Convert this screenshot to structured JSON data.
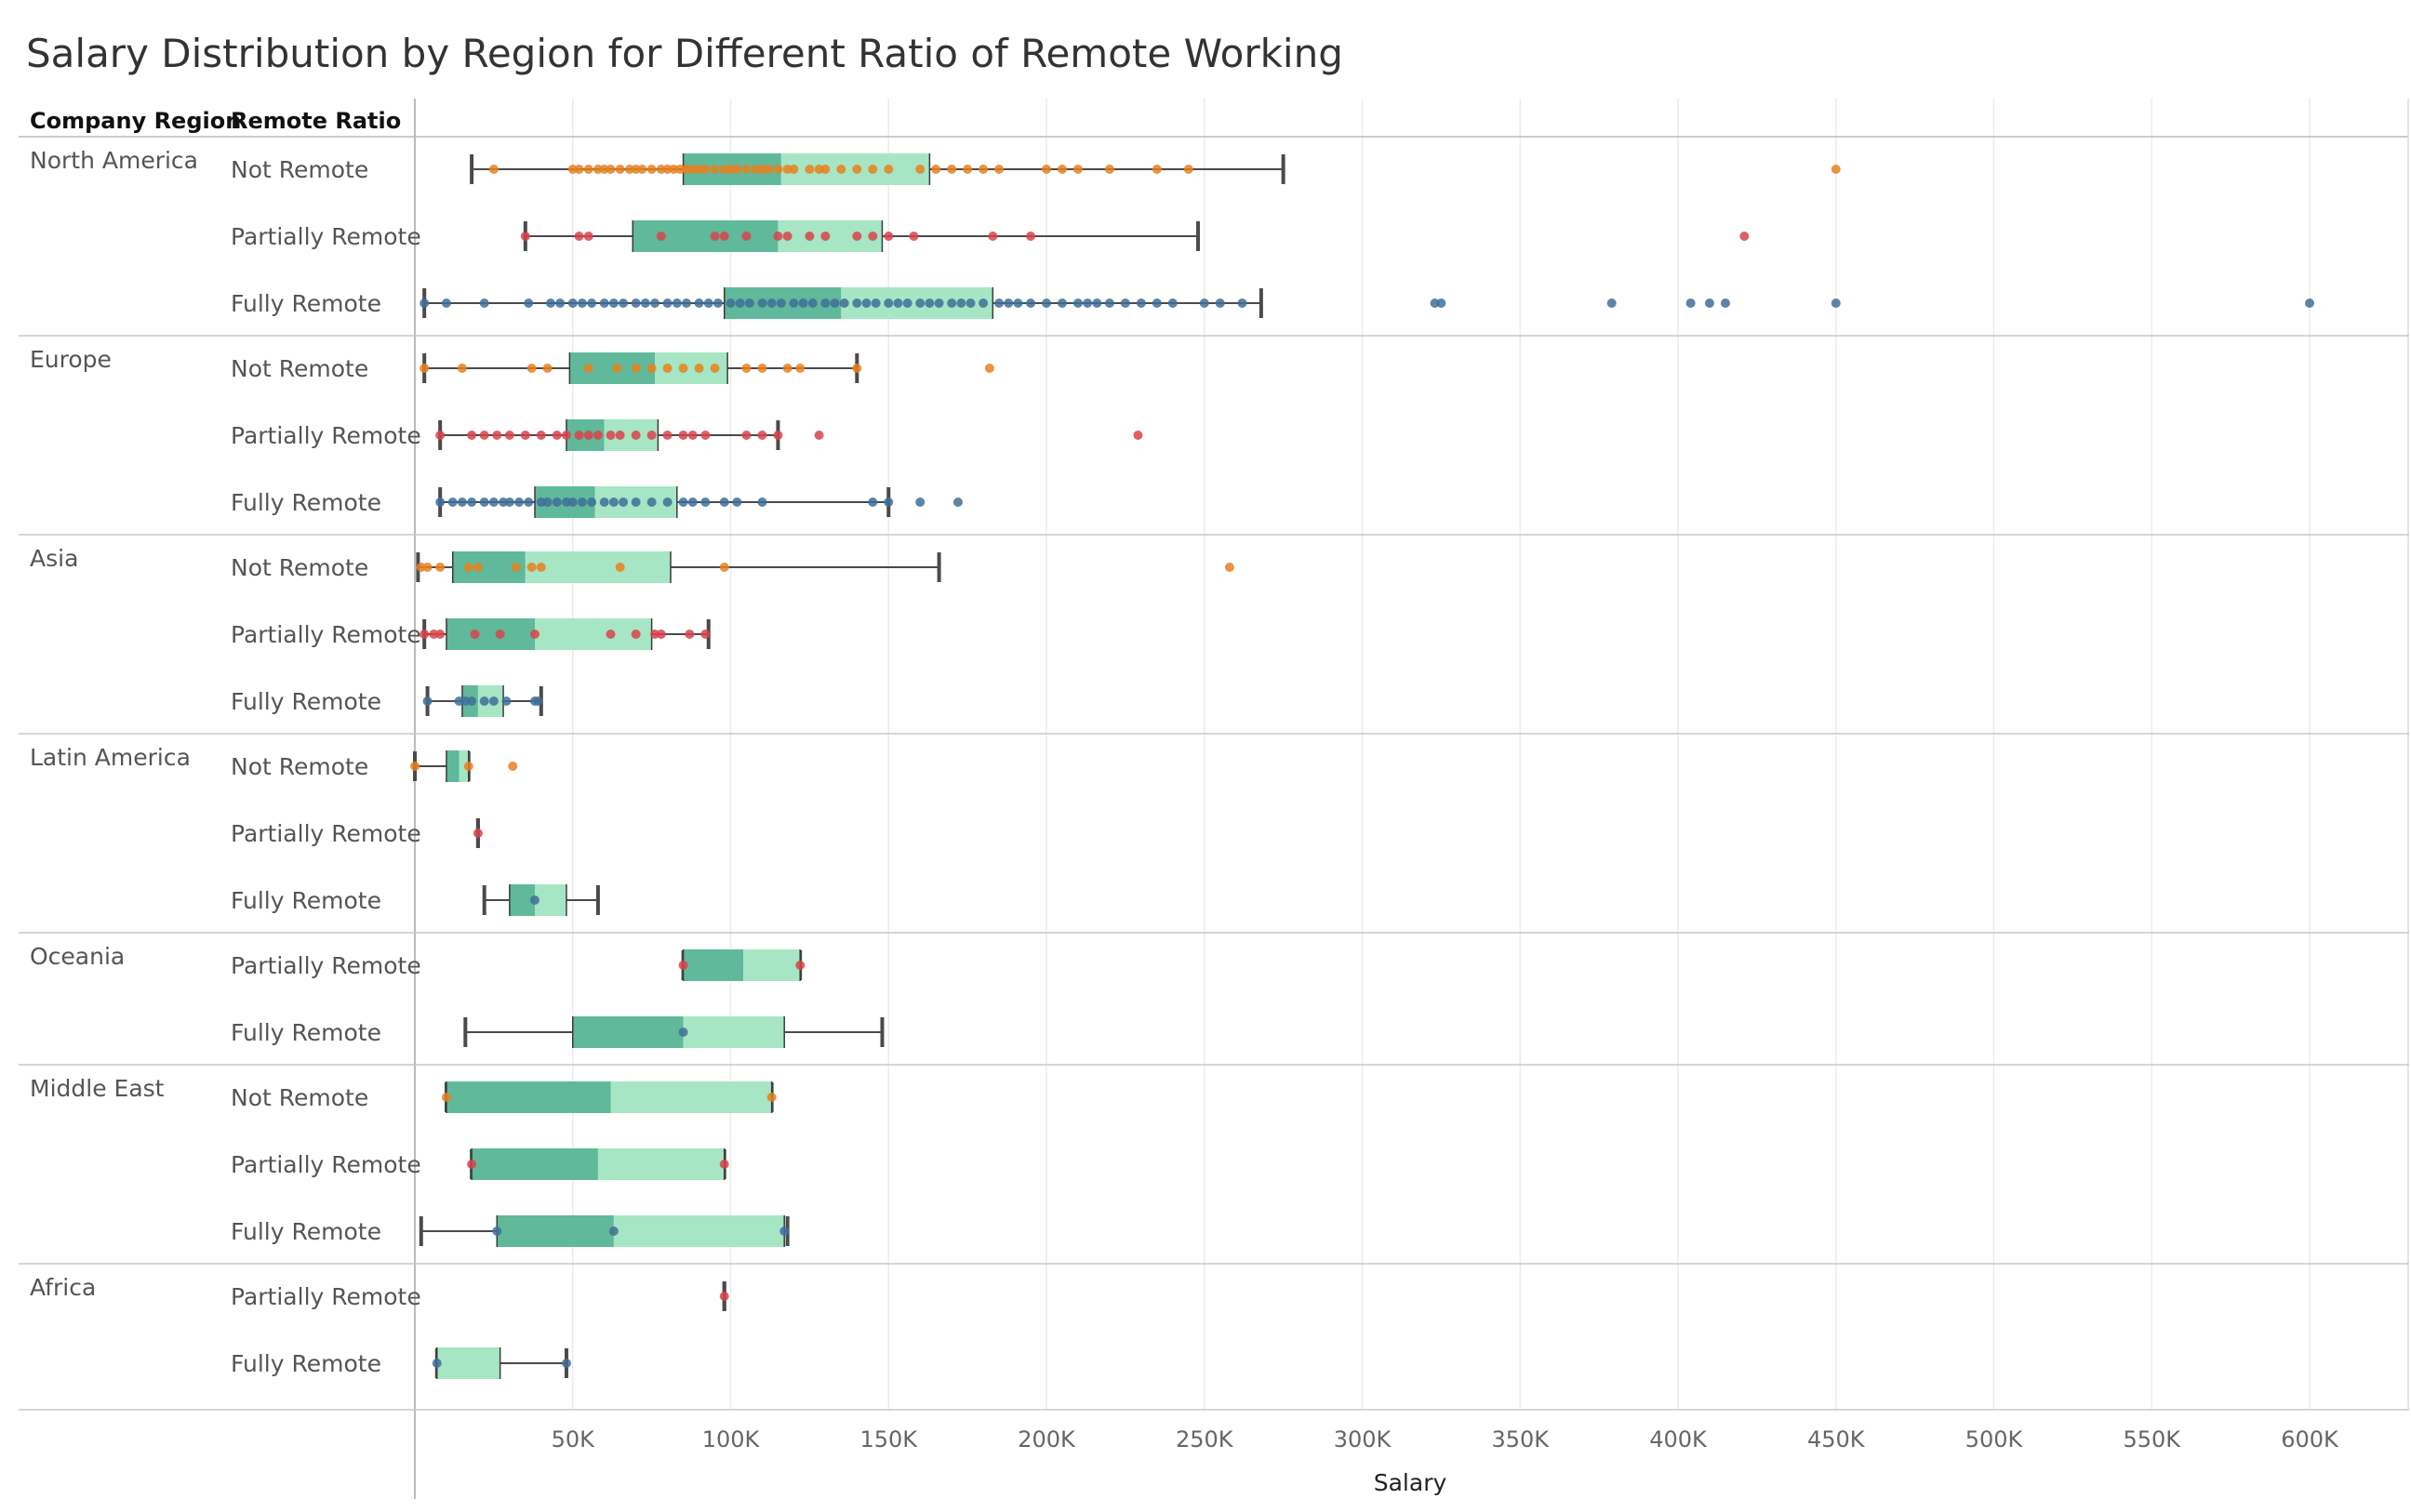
{
  "chart_data": {
    "type": "boxplot",
    "title": "Salary Distribution by Region for Different Ratio of Remote Working",
    "row_headers": [
      "Company Region",
      "Remote Ratio"
    ],
    "xlabel": "Salary",
    "xlim": [
      0,
      630000
    ],
    "x_ticks": [
      50000,
      100000,
      150000,
      200000,
      250000,
      300000,
      350000,
      400000,
      450000,
      500000,
      550000,
      600000
    ],
    "x_tick_labels": [
      "50K",
      "100K",
      "150K",
      "200K",
      "250K",
      "300K",
      "350K",
      "400K",
      "450K",
      "500K",
      "550K",
      "600K"
    ],
    "grid": true,
    "colors": {
      "Not Remote": "#E8801E",
      "Partially Remote": "#D9434B",
      "Fully Remote": "#3F6F99",
      "box_lower": "#5FB99A",
      "box_upper": "#A6E6C4",
      "whisker": "#4A4A4A"
    },
    "groups": [
      {
        "region": "North America",
        "rows": [
          {
            "remote": "Not Remote",
            "whisker_low": 18000,
            "q1": 85000,
            "median": 116000,
            "q3": 163000,
            "whisker_high": 275000,
            "points": [
              25000,
              50000,
              52000,
              55000,
              58000,
              60000,
              62000,
              65000,
              68000,
              70000,
              72000,
              75000,
              78000,
              80000,
              82000,
              84000,
              86000,
              88000,
              90000,
              92000,
              95000,
              98000,
              100000,
              102000,
              105000,
              108000,
              110000,
              112000,
              115000,
              118000,
              120000,
              125000,
              128000,
              130000,
              135000,
              140000,
              145000,
              150000,
              160000,
              165000,
              170000,
              175000,
              180000,
              185000,
              200000,
              205000,
              210000,
              220000,
              235000,
              245000,
              450000
            ]
          },
          {
            "remote": "Partially Remote",
            "whisker_low": 35000,
            "q1": 69000,
            "median": 115000,
            "q3": 148000,
            "whisker_high": 248000,
            "points": [
              35000,
              52000,
              55000,
              78000,
              95000,
              98000,
              105000,
              115000,
              118000,
              125000,
              130000,
              140000,
              145000,
              150000,
              158000,
              183000,
              195000,
              421000
            ]
          },
          {
            "remote": "Fully Remote",
            "whisker_low": 3000,
            "q1": 98000,
            "median": 135000,
            "q3": 183000,
            "whisker_high": 268000,
            "points": [
              3000,
              10000,
              22000,
              36000,
              43000,
              46000,
              50000,
              53000,
              56000,
              60000,
              63000,
              66000,
              70000,
              73000,
              76000,
              80000,
              83000,
              86000,
              90000,
              93000,
              96000,
              100000,
              103000,
              106000,
              110000,
              113000,
              116000,
              120000,
              123000,
              126000,
              130000,
              133000,
              136000,
              140000,
              143000,
              146000,
              150000,
              153000,
              156000,
              160000,
              163000,
              166000,
              170000,
              173000,
              176000,
              180000,
              185000,
              188000,
              191000,
              195000,
              200000,
              205000,
              210000,
              213000,
              216000,
              220000,
              225000,
              230000,
              235000,
              240000,
              250000,
              255000,
              262000,
              323000,
              325000,
              379000,
              404000,
              410000,
              415000,
              450000,
              600000
            ]
          }
        ]
      },
      {
        "region": "Europe",
        "rows": [
          {
            "remote": "Not Remote",
            "whisker_low": 3000,
            "q1": 49000,
            "median": 76000,
            "q3": 99000,
            "whisker_high": 140000,
            "points": [
              3000,
              15000,
              37000,
              42000,
              55000,
              64000,
              70000,
              75000,
              80000,
              85000,
              90000,
              95000,
              105000,
              110000,
              118000,
              122000,
              140000,
              182000
            ]
          },
          {
            "remote": "Partially Remote",
            "whisker_low": 8000,
            "q1": 48000,
            "median": 60000,
            "q3": 77000,
            "whisker_high": 115000,
            "points": [
              8000,
              18000,
              22000,
              26000,
              30000,
              35000,
              40000,
              45000,
              48000,
              52000,
              55000,
              58000,
              62000,
              65000,
              70000,
              75000,
              80000,
              85000,
              88000,
              92000,
              105000,
              110000,
              115000,
              128000,
              229000
            ]
          },
          {
            "remote": "Fully Remote",
            "whisker_low": 8000,
            "q1": 38000,
            "median": 57000,
            "q3": 83000,
            "whisker_high": 150000,
            "points": [
              8000,
              12000,
              15000,
              18000,
              22000,
              25000,
              28000,
              30000,
              33000,
              36000,
              40000,
              42000,
              45000,
              48000,
              50000,
              53000,
              56000,
              60000,
              63000,
              66000,
              70000,
              75000,
              80000,
              85000,
              88000,
              92000,
              98000,
              102000,
              110000,
              145000,
              150000,
              160000,
              172000
            ]
          }
        ]
      },
      {
        "region": "Asia",
        "rows": [
          {
            "remote": "Not Remote",
            "whisker_low": 1000,
            "q1": 12000,
            "median": 35000,
            "q3": 81000,
            "whisker_high": 166000,
            "points": [
              2000,
              4000,
              8000,
              17000,
              20000,
              32000,
              37000,
              40000,
              65000,
              98000,
              258000
            ]
          },
          {
            "remote": "Partially Remote",
            "whisker_low": 3000,
            "q1": 10000,
            "median": 38000,
            "q3": 75000,
            "whisker_high": 93000,
            "points": [
              3000,
              6000,
              8000,
              19000,
              27000,
              38000,
              62000,
              70000,
              76000,
              78000,
              87000,
              92000
            ]
          },
          {
            "remote": "Fully Remote",
            "whisker_low": 4000,
            "q1": 15000,
            "median": 20000,
            "q3": 28000,
            "whisker_high": 40000,
            "points": [
              4000,
              14000,
              16000,
              18000,
              22000,
              25000,
              29000,
              38000,
              39000
            ]
          }
        ]
      },
      {
        "region": "Latin America",
        "rows": [
          {
            "remote": "Not Remote",
            "whisker_low": 0,
            "q1": 10000,
            "median": 14000,
            "q3": 17000,
            "whisker_high": 17000,
            "points": [
              0,
              17000,
              31000
            ]
          },
          {
            "remote": "Partially Remote",
            "whisker_low": 20000,
            "q1": 20000,
            "median": 20000,
            "q3": 20000,
            "whisker_high": 20000,
            "points": [
              20000
            ]
          },
          {
            "remote": "Fully Remote",
            "whisker_low": 22000,
            "q1": 30000,
            "median": 38000,
            "q3": 48000,
            "whisker_high": 58000,
            "points": [
              38000
            ]
          }
        ]
      },
      {
        "region": "Oceania",
        "rows": [
          {
            "remote": "Partially Remote",
            "whisker_low": 85000,
            "q1": 85000,
            "median": 104000,
            "q3": 122000,
            "whisker_high": 122000,
            "points": [
              85000,
              122000
            ]
          },
          {
            "remote": "Fully Remote",
            "whisker_low": 16000,
            "q1": 50000,
            "median": 85000,
            "q3": 117000,
            "whisker_high": 148000,
            "points": [
              85000
            ]
          }
        ]
      },
      {
        "region": "Middle East",
        "rows": [
          {
            "remote": "Not Remote",
            "whisker_low": 10000,
            "q1": 10000,
            "median": 62000,
            "q3": 113000,
            "whisker_high": 113000,
            "points": [
              10000,
              113000
            ]
          },
          {
            "remote": "Partially Remote",
            "whisker_low": 18000,
            "q1": 18000,
            "median": 58000,
            "q3": 98000,
            "whisker_high": 98000,
            "points": [
              18000,
              98000
            ]
          },
          {
            "remote": "Fully Remote",
            "whisker_low": 2000,
            "q1": 26000,
            "median": 63000,
            "q3": 117000,
            "whisker_high": 118000,
            "points": [
              26000,
              63000,
              117000
            ]
          }
        ]
      },
      {
        "region": "Africa",
        "rows": [
          {
            "remote": "Partially Remote",
            "whisker_low": 98000,
            "q1": 98000,
            "median": 98000,
            "q3": 98000,
            "whisker_high": 98000,
            "points": [
              98000
            ]
          },
          {
            "remote": "Fully Remote",
            "whisker_low": 7000,
            "q1": 7000,
            "median": 7000,
            "q3": 27000,
            "whisker_high": 48000,
            "points": [
              7000,
              48000
            ]
          }
        ]
      }
    ]
  }
}
